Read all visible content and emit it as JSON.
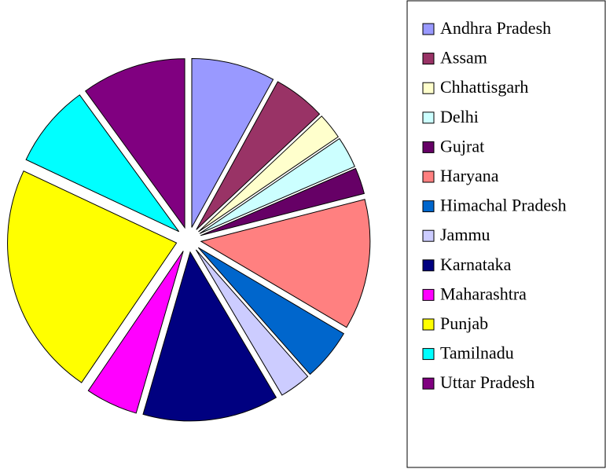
{
  "chart_data": {
    "type": "pie",
    "categories": [
      "Andhra Pradesh",
      "Assam",
      "Chhattisgarh",
      "Delhi",
      "Gujrat",
      "Haryana",
      "Himachal Pradesh",
      "Jammu",
      "Karnataka",
      "Maharashtra",
      "Punjab",
      "Tamilnadu",
      "Uttar Pradesh"
    ],
    "values": [
      8,
      5,
      2.5,
      3,
      2.5,
      12.5,
      5,
      3,
      13,
      5,
      22.5,
      8,
      10
    ],
    "colors": [
      "#9999ff",
      "#993366",
      "#ffffcc",
      "#ccffff",
      "#660066",
      "#ff8080",
      "#0066cc",
      "#ccccff",
      "#000080",
      "#ff00ff",
      "#ffff00",
      "#00ffff",
      "#800080"
    ],
    "legend": "right"
  }
}
